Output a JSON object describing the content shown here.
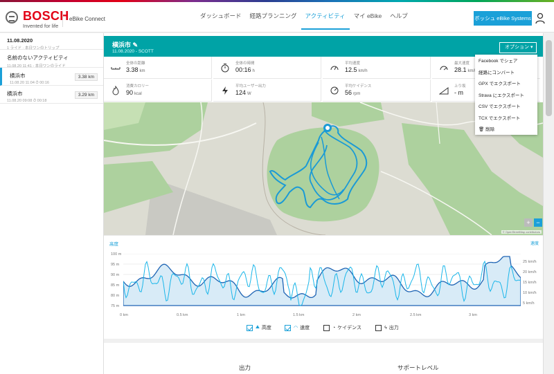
{
  "header": {
    "brand": "BOSCH",
    "tagline": "Invented for life",
    "app_name": "eBike Connect",
    "nav": [
      "ダッシュボード",
      "経路プランニング",
      "アクティビティ",
      "マイ eBike",
      "ヘルプ"
    ],
    "active_nav": "アクティビティ",
    "systems_button": "ボッシュ eBike Systems"
  },
  "sidebar": {
    "trips": [
      {
        "title": "11.08.2020",
        "subtitle": "1 ライド · 本日ワンのトリップ",
        "distance": ""
      },
      {
        "title": "名前のないアクティビティ",
        "subtitle": "11.08.20 11:41 - 本日ワンのライド",
        "distance": ""
      },
      {
        "title": "横浜市",
        "subtitle": "11.08.20 11:04  ⏱  00:16",
        "distance": "3.38 km"
      },
      {
        "title": "横浜市",
        "subtitle": "11.08.20 09:08  ⏱  00:18",
        "distance": "3.29 km"
      }
    ]
  },
  "activity": {
    "title": "横浜市",
    "subtitle": "11.08.2020 - SCOTT",
    "options_label": "オプション"
  },
  "stats": [
    {
      "label": "全体の距離",
      "value": "3.38",
      "unit": "km",
      "icon": "distance-icon"
    },
    {
      "label": "全体の時間",
      "value": "00:16",
      "unit": "h",
      "icon": "stopwatch-icon"
    },
    {
      "label": "平均速度",
      "value": "12.5",
      "unit": "km/h",
      "icon": "speedometer-icon"
    },
    {
      "label": "最大速度",
      "value": "28.1",
      "unit": "km/h",
      "icon": "max-speed-icon"
    },
    {
      "label": "消費カロリー",
      "value": "90",
      "unit": "kcal",
      "icon": "flame-icon"
    },
    {
      "label": "平均ユーザー出力",
      "value": "124",
      "unit": "W",
      "icon": "lightning-icon"
    },
    {
      "label": "平均ケイデンス",
      "value": "56",
      "unit": "rpm",
      "icon": "cadence-icon"
    },
    {
      "label": "上り坂",
      "value": "- m",
      "unit": "",
      "icon": "incline-icon"
    }
  ],
  "dropdown": [
    "Facebook でシェア",
    "経路にコンバート",
    "GPX でエクスポート",
    "Strava にエクスポート",
    "CSV でエクスポート",
    "TCX でエクスポート",
    "削除"
  ],
  "map": {
    "attribution": "© OpenStreetMap contributors",
    "zoom_in": "+",
    "zoom_out": "−"
  },
  "elevation": {
    "title": "高度",
    "speed_title": "速度",
    "y_left": [
      "100 m",
      "95 m",
      "90 m",
      "85 m",
      "80 m",
      "75 m"
    ],
    "y_right": [
      "25 km/h",
      "20 km/h",
      "15 km/h",
      "10 km/h",
      "5 km/h"
    ],
    "x_ticks": [
      "0 km",
      "0.5 km",
      "1 km",
      "1.5 km",
      "2 km",
      "2.5 km",
      "3 km"
    ],
    "legend": [
      {
        "label": "高度",
        "checked": true
      },
      {
        "label": "速度",
        "checked": true
      },
      {
        "label": "ケイデンス",
        "checked": false
      },
      {
        "label": "出力",
        "checked": false
      }
    ]
  },
  "lower": {
    "output": "出力",
    "support": "サポートレベル"
  },
  "colors": {
    "accent": "#1aa0d8",
    "title_bar": "#00a3a6",
    "brand_red": "#e20015"
  }
}
